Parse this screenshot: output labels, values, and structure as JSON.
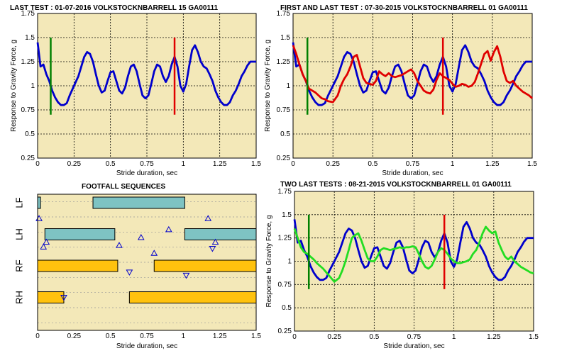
{
  "chart_data": [
    {
      "id": "p1",
      "type": "line",
      "title": "LAST TEST : 01-07-2016 VOLKSTOCKNBARRELL 15 GA00111",
      "xlabel": "Stride duration, sec",
      "ylabel": "Response to Gravity Force, g",
      "xlim": [
        0,
        1.5
      ],
      "ylim": [
        0.25,
        1.75
      ],
      "xticks": [
        "0",
        "0.25",
        "0.5",
        "0.75",
        "1",
        "1.25",
        "1.5"
      ],
      "yticks": [
        "0.25",
        "0.5",
        "0.75",
        "1",
        "1.25",
        "1.5",
        "1.75"
      ],
      "grid": true,
      "vlines": [
        {
          "x": 0.09,
          "y": [
            0.7,
            1.5
          ],
          "color": "#008000"
        },
        {
          "x": 0.94,
          "y": [
            0.7,
            1.5
          ],
          "color": "#e00000"
        }
      ],
      "series": [
        {
          "color": "#0000cc",
          "x": [
            0,
            0.02,
            0.04,
            0.06,
            0.08,
            0.1,
            0.12,
            0.14,
            0.16,
            0.18,
            0.2,
            0.22,
            0.25,
            0.28,
            0.3,
            0.32,
            0.34,
            0.36,
            0.38,
            0.4,
            0.42,
            0.44,
            0.46,
            0.48,
            0.5,
            0.52,
            0.54,
            0.56,
            0.58,
            0.6,
            0.62,
            0.64,
            0.66,
            0.68,
            0.7,
            0.72,
            0.74,
            0.76,
            0.78,
            0.8,
            0.82,
            0.84,
            0.86,
            0.88,
            0.9,
            0.92,
            0.94,
            0.96,
            0.98,
            1.0,
            1.02,
            1.04,
            1.06,
            1.08,
            1.1,
            1.12,
            1.14,
            1.16,
            1.18,
            1.2,
            1.22,
            1.24,
            1.26,
            1.28,
            1.3,
            1.32,
            1.34,
            1.36,
            1.38,
            1.4,
            1.42,
            1.44,
            1.46,
            1.48,
            1.5
          ],
          "y": [
            1.45,
            1.2,
            1.22,
            1.12,
            1.05,
            0.95,
            0.88,
            0.83,
            0.8,
            0.8,
            0.82,
            0.9,
            1.0,
            1.1,
            1.2,
            1.3,
            1.35,
            1.33,
            1.25,
            1.12,
            1.0,
            0.93,
            0.95,
            1.05,
            1.14,
            1.15,
            1.05,
            0.95,
            0.92,
            0.98,
            1.1,
            1.2,
            1.22,
            1.15,
            1.02,
            0.9,
            0.87,
            0.9,
            1.02,
            1.15,
            1.22,
            1.2,
            1.1,
            1.04,
            1.1,
            1.22,
            1.3,
            1.2,
            1.0,
            0.94,
            1.02,
            1.2,
            1.37,
            1.42,
            1.35,
            1.25,
            1.2,
            1.18,
            1.12,
            1.05,
            0.95,
            0.88,
            0.83,
            0.8,
            0.8,
            0.83,
            0.9,
            0.95,
            1.02,
            1.1,
            1.15,
            1.21,
            1.25,
            1.25,
            1.25
          ]
        }
      ]
    },
    {
      "id": "p2",
      "type": "line",
      "title": "FIRST AND LAST TEST : 07-30-2015 VOLKSTOCKNBARRELL 01 GA00111",
      "xlabel": "Stride duration, sec",
      "ylabel": "Response to Gravity Force, g",
      "xlim": [
        0,
        1.5
      ],
      "ylim": [
        0.25,
        1.75
      ],
      "xticks": [
        "0",
        "0.25",
        "0.5",
        "0.75",
        "1",
        "1.25",
        "1.5"
      ],
      "yticks": [
        "0.25",
        "0.5",
        "0.75",
        "1",
        "1.25",
        "1.5",
        "1.75"
      ],
      "grid": true,
      "vlines": [
        {
          "x": 0.09,
          "y": [
            0.7,
            1.5
          ],
          "color": "#008000"
        },
        {
          "x": 0.94,
          "y": [
            0.7,
            1.5
          ],
          "color": "#e00000"
        }
      ],
      "series": [
        {
          "color": "#0000cc",
          "x": [
            0,
            0.02,
            0.04,
            0.06,
            0.08,
            0.1,
            0.12,
            0.14,
            0.16,
            0.18,
            0.2,
            0.22,
            0.25,
            0.28,
            0.3,
            0.32,
            0.34,
            0.36,
            0.38,
            0.4,
            0.42,
            0.44,
            0.46,
            0.48,
            0.5,
            0.52,
            0.54,
            0.56,
            0.58,
            0.6,
            0.62,
            0.64,
            0.66,
            0.68,
            0.7,
            0.72,
            0.74,
            0.76,
            0.78,
            0.8,
            0.82,
            0.84,
            0.86,
            0.88,
            0.9,
            0.92,
            0.94,
            0.96,
            0.98,
            1.0,
            1.02,
            1.04,
            1.06,
            1.08,
            1.1,
            1.12,
            1.14,
            1.16,
            1.18,
            1.2,
            1.22,
            1.24,
            1.26,
            1.28,
            1.3,
            1.32,
            1.34,
            1.36,
            1.38,
            1.4,
            1.42,
            1.44,
            1.46,
            1.48,
            1.5
          ],
          "y": [
            1.45,
            1.2,
            1.22,
            1.12,
            1.05,
            0.95,
            0.88,
            0.83,
            0.8,
            0.8,
            0.82,
            0.9,
            1.0,
            1.1,
            1.2,
            1.3,
            1.35,
            1.33,
            1.25,
            1.12,
            1.0,
            0.93,
            0.95,
            1.05,
            1.14,
            1.15,
            1.05,
            0.95,
            0.92,
            0.98,
            1.1,
            1.2,
            1.22,
            1.15,
            1.02,
            0.9,
            0.87,
            0.9,
            1.02,
            1.15,
            1.22,
            1.2,
            1.1,
            1.04,
            1.1,
            1.22,
            1.3,
            1.2,
            1.0,
            0.94,
            1.02,
            1.2,
            1.37,
            1.42,
            1.35,
            1.25,
            1.2,
            1.18,
            1.12,
            1.05,
            0.95,
            0.88,
            0.83,
            0.8,
            0.8,
            0.83,
            0.9,
            0.95,
            1.02,
            1.1,
            1.15,
            1.21,
            1.25,
            1.25,
            1.25
          ]
        },
        {
          "color": "#e00000",
          "x": [
            0,
            0.02,
            0.04,
            0.06,
            0.08,
            0.1,
            0.12,
            0.14,
            0.16,
            0.18,
            0.2,
            0.22,
            0.25,
            0.28,
            0.3,
            0.32,
            0.34,
            0.36,
            0.38,
            0.4,
            0.42,
            0.44,
            0.46,
            0.48,
            0.5,
            0.52,
            0.54,
            0.56,
            0.58,
            0.6,
            0.62,
            0.64,
            0.66,
            0.68,
            0.7,
            0.72,
            0.74,
            0.76,
            0.78,
            0.8,
            0.82,
            0.84,
            0.86,
            0.88,
            0.9,
            0.92,
            0.94,
            0.96,
            0.98,
            1.0,
            1.02,
            1.04,
            1.06,
            1.08,
            1.1,
            1.12,
            1.14,
            1.16,
            1.18,
            1.2,
            1.22,
            1.24,
            1.26,
            1.28,
            1.3,
            1.32,
            1.34,
            1.36,
            1.38,
            1.4,
            1.42,
            1.44,
            1.46,
            1.48,
            1.5
          ],
          "y": [
            1.42,
            1.33,
            1.22,
            1.12,
            1.05,
            0.97,
            0.95,
            0.93,
            0.9,
            0.87,
            0.86,
            0.84,
            0.83,
            0.9,
            1.0,
            1.07,
            1.12,
            1.2,
            1.3,
            1.32,
            1.2,
            1.08,
            1.03,
            1.02,
            1.01,
            1.05,
            1.15,
            1.12,
            1.1,
            1.13,
            1.1,
            1.09,
            1.1,
            1.11,
            1.13,
            1.15,
            1.17,
            1.13,
            1.05,
            1.0,
            0.95,
            0.93,
            0.92,
            0.96,
            1.06,
            1.13,
            1.1,
            1.08,
            1.06,
            1.02,
            0.99,
            1.0,
            1.02,
            1.01,
            0.99,
            1.0,
            1.04,
            1.13,
            1.23,
            1.33,
            1.36,
            1.26,
            1.35,
            1.41,
            1.3,
            1.15,
            1.05,
            1.03,
            1.05,
            1.0,
            0.97,
            0.94,
            0.92,
            0.9,
            0.87
          ]
        }
      ]
    },
    {
      "id": "p3",
      "type": "bar",
      "title": "FOOTFALL SEQUENCES",
      "xlabel": "Stride duration, sec",
      "xlim": [
        0,
        1.5
      ],
      "xticks": [
        "0",
        "0.25",
        "0.5",
        "0.75",
        "1",
        "1.25",
        "1.5"
      ],
      "categories": [
        "LF",
        "LH",
        "RF",
        "RH"
      ],
      "grid": true,
      "bars": [
        {
          "row": 0,
          "start": 0.0,
          "end": 0.02,
          "color": "#7ec3c3"
        },
        {
          "row": 0,
          "start": 0.38,
          "end": 1.01,
          "color": "#7ec3c3"
        },
        {
          "row": 1,
          "start": 0.05,
          "end": 0.53,
          "color": "#7ec3c3"
        },
        {
          "row": 1,
          "start": 1.01,
          "end": 1.5,
          "color": "#7ec3c3"
        },
        {
          "row": 2,
          "start": 0.0,
          "end": 0.55,
          "color": "#ffc20e"
        },
        {
          "row": 2,
          "start": 0.8,
          "end": 1.5,
          "color": "#ffc20e"
        },
        {
          "row": 3,
          "start": 0.0,
          "end": 0.18,
          "color": "#ffc20e"
        },
        {
          "row": 3,
          "start": 0.63,
          "end": 1.5,
          "color": "#ffc20e"
        }
      ],
      "markers": [
        {
          "x": 0.01,
          "row": 0.5,
          "dir": "up"
        },
        {
          "x": 0.06,
          "row": 1.25,
          "dir": "up"
        },
        {
          "x": 0.04,
          "row": 1.4,
          "dir": "up"
        },
        {
          "x": 0.18,
          "row": 3.0,
          "dir": "down"
        },
        {
          "x": 0.56,
          "row": 1.35,
          "dir": "up"
        },
        {
          "x": 0.71,
          "row": 1.1,
          "dir": "up"
        },
        {
          "x": 0.63,
          "row": 2.2,
          "dir": "down"
        },
        {
          "x": 0.8,
          "row": 1.6,
          "dir": "up"
        },
        {
          "x": 0.9,
          "row": 0.85,
          "dir": "up"
        },
        {
          "x": 1.02,
          "row": 2.3,
          "dir": "down"
        },
        {
          "x": 1.17,
          "row": 0.5,
          "dir": "up"
        },
        {
          "x": 1.22,
          "row": 1.25,
          "dir": "up"
        },
        {
          "x": 1.2,
          "row": 1.45,
          "dir": "down"
        }
      ]
    },
    {
      "id": "p4",
      "type": "line",
      "title": "TWO LAST TESTS : 08-21-2015 VOLKSTOCKNBARRELL 01 GA00111",
      "xlabel": "Stride duration, sec",
      "ylabel": "Response to Gravity Force, g",
      "xlim": [
        0,
        1.5
      ],
      "ylim": [
        0.25,
        1.75
      ],
      "xticks": [
        "0",
        "0.25",
        "0.5",
        "0.75",
        "1",
        "1.25",
        "1.5"
      ],
      "yticks": [
        "0.25",
        "0.5",
        "0.75",
        "1",
        "1.25",
        "1.5",
        "1.75"
      ],
      "grid": true,
      "vlines": [
        {
          "x": 0.09,
          "y": [
            0.7,
            1.5
          ],
          "color": "#008000"
        },
        {
          "x": 0.94,
          "y": [
            0.7,
            1.5
          ],
          "color": "#e00000"
        }
      ],
      "series": [
        {
          "color": "#0000cc",
          "x": [
            0,
            0.02,
            0.04,
            0.06,
            0.08,
            0.1,
            0.12,
            0.14,
            0.16,
            0.18,
            0.2,
            0.22,
            0.25,
            0.28,
            0.3,
            0.32,
            0.34,
            0.36,
            0.38,
            0.4,
            0.42,
            0.44,
            0.46,
            0.48,
            0.5,
            0.52,
            0.54,
            0.56,
            0.58,
            0.6,
            0.62,
            0.64,
            0.66,
            0.68,
            0.7,
            0.72,
            0.74,
            0.76,
            0.78,
            0.8,
            0.82,
            0.84,
            0.86,
            0.88,
            0.9,
            0.92,
            0.94,
            0.96,
            0.98,
            1.0,
            1.02,
            1.04,
            1.06,
            1.08,
            1.1,
            1.12,
            1.14,
            1.16,
            1.18,
            1.2,
            1.22,
            1.24,
            1.26,
            1.28,
            1.3,
            1.32,
            1.34,
            1.36,
            1.38,
            1.4,
            1.42,
            1.44,
            1.46,
            1.48,
            1.5
          ],
          "y": [
            1.45,
            1.2,
            1.22,
            1.12,
            1.05,
            0.95,
            0.88,
            0.83,
            0.8,
            0.8,
            0.82,
            0.9,
            1.0,
            1.1,
            1.2,
            1.3,
            1.35,
            1.33,
            1.25,
            1.12,
            1.0,
            0.93,
            0.95,
            1.05,
            1.14,
            1.15,
            1.05,
            0.95,
            0.92,
            0.98,
            1.1,
            1.2,
            1.22,
            1.15,
            1.02,
            0.9,
            0.87,
            0.9,
            1.02,
            1.15,
            1.22,
            1.2,
            1.1,
            1.04,
            1.1,
            1.22,
            1.3,
            1.2,
            1.0,
            0.94,
            1.02,
            1.2,
            1.37,
            1.42,
            1.35,
            1.25,
            1.2,
            1.18,
            1.12,
            1.05,
            0.95,
            0.88,
            0.83,
            0.8,
            0.8,
            0.83,
            0.9,
            0.95,
            1.02,
            1.1,
            1.15,
            1.21,
            1.25,
            1.25,
            1.25
          ]
        },
        {
          "color": "#22dd22",
          "x": [
            0,
            0.02,
            0.04,
            0.06,
            0.08,
            0.1,
            0.12,
            0.14,
            0.16,
            0.18,
            0.2,
            0.22,
            0.25,
            0.28,
            0.3,
            0.32,
            0.34,
            0.36,
            0.38,
            0.4,
            0.42,
            0.44,
            0.46,
            0.48,
            0.5,
            0.52,
            0.54,
            0.56,
            0.58,
            0.6,
            0.62,
            0.64,
            0.66,
            0.68,
            0.7,
            0.72,
            0.74,
            0.76,
            0.78,
            0.8,
            0.82,
            0.84,
            0.86,
            0.88,
            0.9,
            0.92,
            0.94,
            0.96,
            0.98,
            1.0,
            1.02,
            1.04,
            1.06,
            1.08,
            1.1,
            1.12,
            1.14,
            1.16,
            1.18,
            1.2,
            1.22,
            1.24,
            1.26,
            1.28,
            1.3,
            1.32,
            1.34,
            1.36,
            1.38,
            1.4,
            1.42,
            1.44,
            1.46,
            1.48,
            1.5
          ],
          "y": [
            1.35,
            1.25,
            1.15,
            1.1,
            1.08,
            1.05,
            1.02,
            0.98,
            0.95,
            0.92,
            0.88,
            0.84,
            0.78,
            0.82,
            0.9,
            1.0,
            1.12,
            1.25,
            1.28,
            1.3,
            1.22,
            1.12,
            1.03,
            1.0,
            1.0,
            1.05,
            1.12,
            1.14,
            1.13,
            1.12,
            1.13,
            1.14,
            1.15,
            1.14,
            1.15,
            1.15,
            1.16,
            1.15,
            1.08,
            1.0,
            0.94,
            0.92,
            0.95,
            1.02,
            1.1,
            1.14,
            1.12,
            1.08,
            1.03,
            1.0,
            0.98,
            0.98,
            0.99,
            1.0,
            1.02,
            1.08,
            1.12,
            1.2,
            1.3,
            1.37,
            1.33,
            1.3,
            1.32,
            1.2,
            1.12,
            1.05,
            1.02,
            1.05,
            1.0,
            0.97,
            0.94,
            0.92,
            0.9,
            0.88,
            0.87
          ]
        }
      ]
    }
  ]
}
